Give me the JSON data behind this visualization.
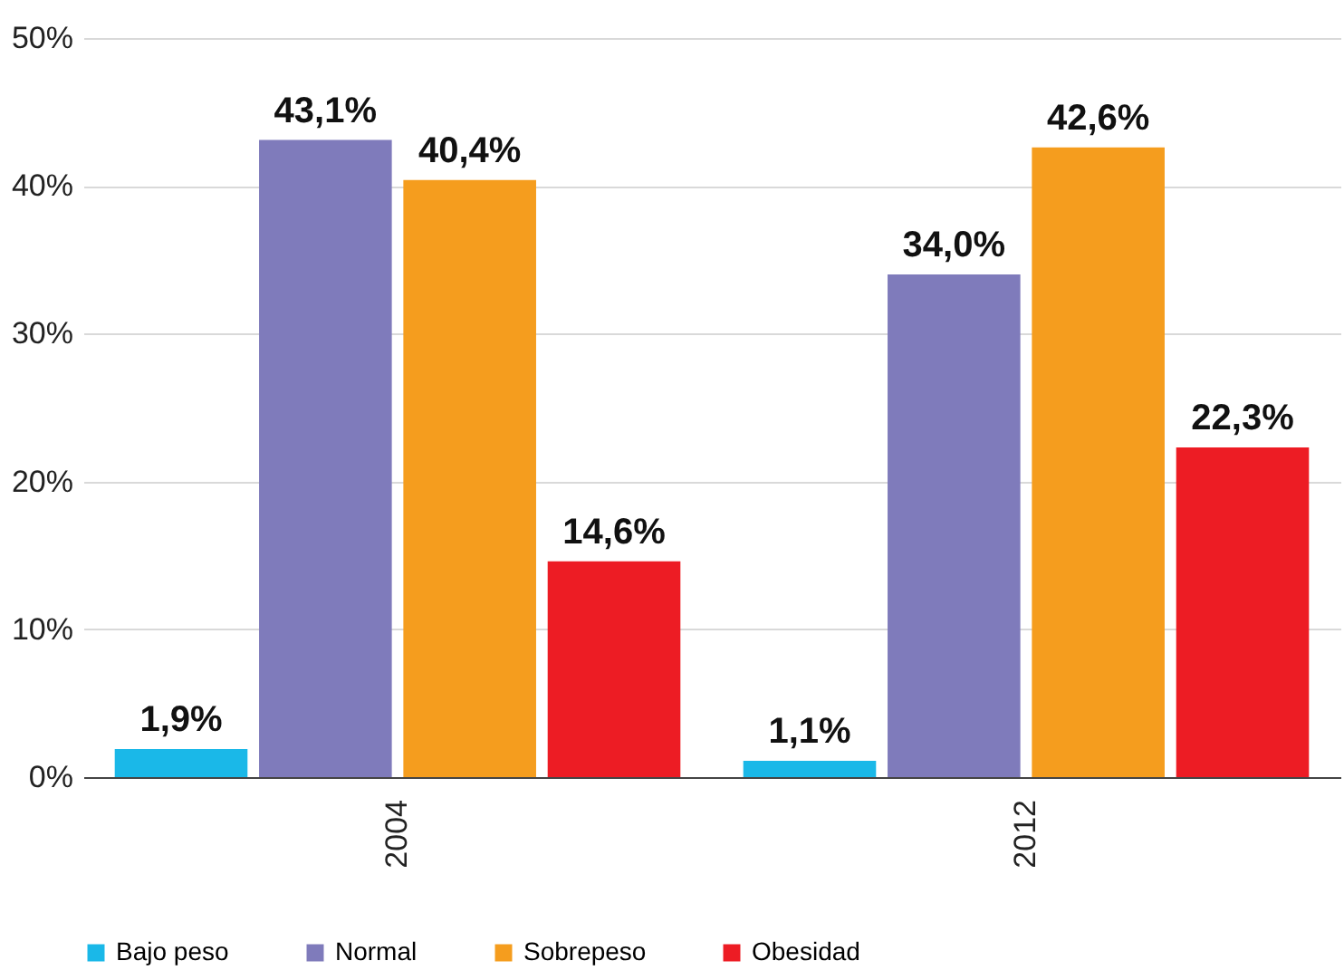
{
  "chart_data": {
    "type": "bar",
    "categories": [
      "2004",
      "2012"
    ],
    "series": [
      {
        "name": "Bajo peso",
        "color": "#1ab8e8",
        "values": [
          1.9,
          1.1
        ],
        "value_labels": [
          "1,9%",
          "1,1%"
        ]
      },
      {
        "name": "Normal",
        "color": "#7f7bbb",
        "values": [
          43.1,
          34.0
        ],
        "value_labels": [
          "43,1%",
          "34,0%"
        ]
      },
      {
        "name": "Sobrepeso",
        "color": "#f59d1e",
        "values": [
          40.4,
          42.6
        ],
        "value_labels": [
          "40,4%",
          "42,6%"
        ]
      },
      {
        "name": "Obesidad",
        "color": "#ed1c24",
        "values": [
          14.6,
          22.3
        ],
        "value_labels": [
          "14,6%",
          "22,3%"
        ]
      }
    ],
    "ylim": [
      0,
      50
    ],
    "yticks": [
      {
        "value": 0,
        "label": "0%"
      },
      {
        "value": 10,
        "label": "10%"
      },
      {
        "value": 20,
        "label": "20%"
      },
      {
        "value": 30,
        "label": "30%"
      },
      {
        "value": 40,
        "label": "40%"
      },
      {
        "value": 50,
        "label": "50%"
      }
    ],
    "grid": "y",
    "legend": "bottom"
  }
}
